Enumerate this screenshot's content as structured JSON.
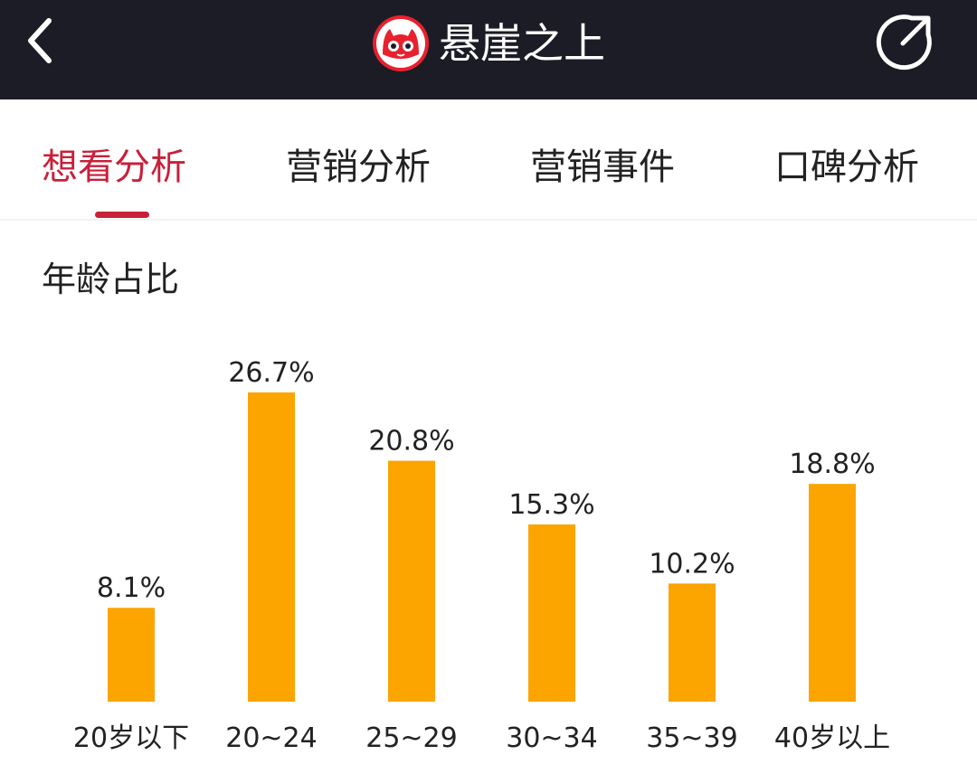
{
  "header": {
    "title": "悬崖之上",
    "back_icon": "chevron-left-icon",
    "share_icon": "share-icon",
    "logo_icon": "maoyan-cat-logo-icon"
  },
  "tabs": [
    {
      "label": "想看分析",
      "active": true
    },
    {
      "label": "营销分析",
      "active": false
    },
    {
      "label": "营销事件",
      "active": false
    },
    {
      "label": "口碑分析",
      "active": false
    }
  ],
  "section": {
    "title": "年龄占比"
  },
  "colors": {
    "bar": "#fca400",
    "accent": "#c8203a",
    "header_bg": "#1c1c26",
    "text": "#222222"
  },
  "chart_data": {
    "type": "bar",
    "title": "年龄占比",
    "categories": [
      "20岁以下",
      "20~24",
      "25~29",
      "30~34",
      "35~39",
      "40岁以上"
    ],
    "values": [
      8.1,
      26.7,
      20.8,
      15.3,
      10.2,
      18.8
    ],
    "value_labels": [
      "8.1%",
      "26.7%",
      "20.8%",
      "15.3%",
      "10.2%",
      "18.8%"
    ],
    "unit": "%",
    "ylim": [
      0,
      26.7
    ],
    "grid": false,
    "legend": "none"
  }
}
